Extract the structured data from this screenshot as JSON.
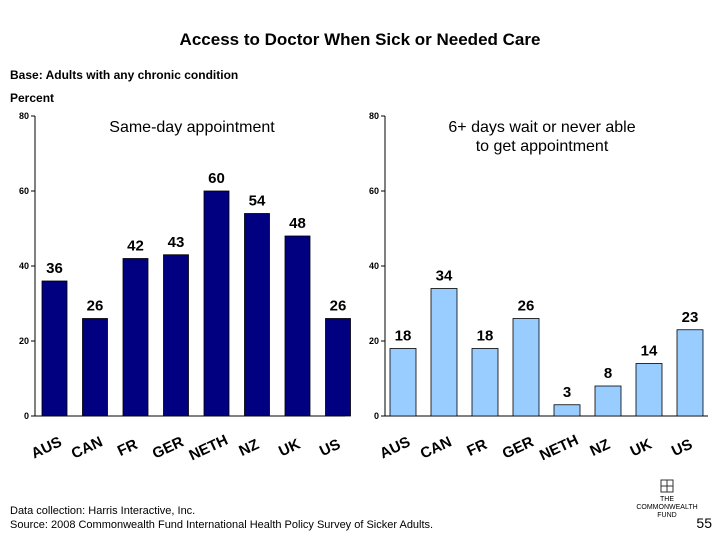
{
  "page": {
    "title": "Access to Doctor When Sick or Needed Care",
    "base_note": "Base: Adults with any chronic condition",
    "unit_label": "Percent",
    "footer_collection": "Data collection: Harris Interactive, Inc.",
    "footer_source": "Source: 2008 Commonwealth Fund International Health Policy Survey of Sicker Adults.",
    "logo_text": "THE COMMONWEALTH FUND",
    "page_number": "55"
  },
  "chart_data": [
    {
      "type": "bar",
      "title": "Same-day appointment",
      "title_lines": [
        "Same-day appointment"
      ],
      "categories": [
        "AUS",
        "CAN",
        "FR",
        "GER",
        "NETH",
        "NZ",
        "UK",
        "US"
      ],
      "values": [
        36,
        26,
        42,
        43,
        60,
        54,
        48,
        26
      ],
      "ylim": [
        0,
        80
      ],
      "yticks": [
        0,
        20,
        40,
        60,
        80
      ],
      "grid": false,
      "bar_color": "#000080"
    },
    {
      "type": "bar",
      "title": "6+ days wait or never able to get appointment",
      "title_lines": [
        "6+ days wait or never able",
        "to get appointment"
      ],
      "categories": [
        "AUS",
        "CAN",
        "FR",
        "GER",
        "NETH",
        "NZ",
        "UK",
        "US"
      ],
      "values": [
        18,
        34,
        18,
        26,
        3,
        8,
        14,
        23
      ],
      "ylim": [
        0,
        80
      ],
      "yticks": [
        0,
        20,
        40,
        60,
        80
      ],
      "grid": false,
      "bar_color": "#99ccff"
    }
  ]
}
